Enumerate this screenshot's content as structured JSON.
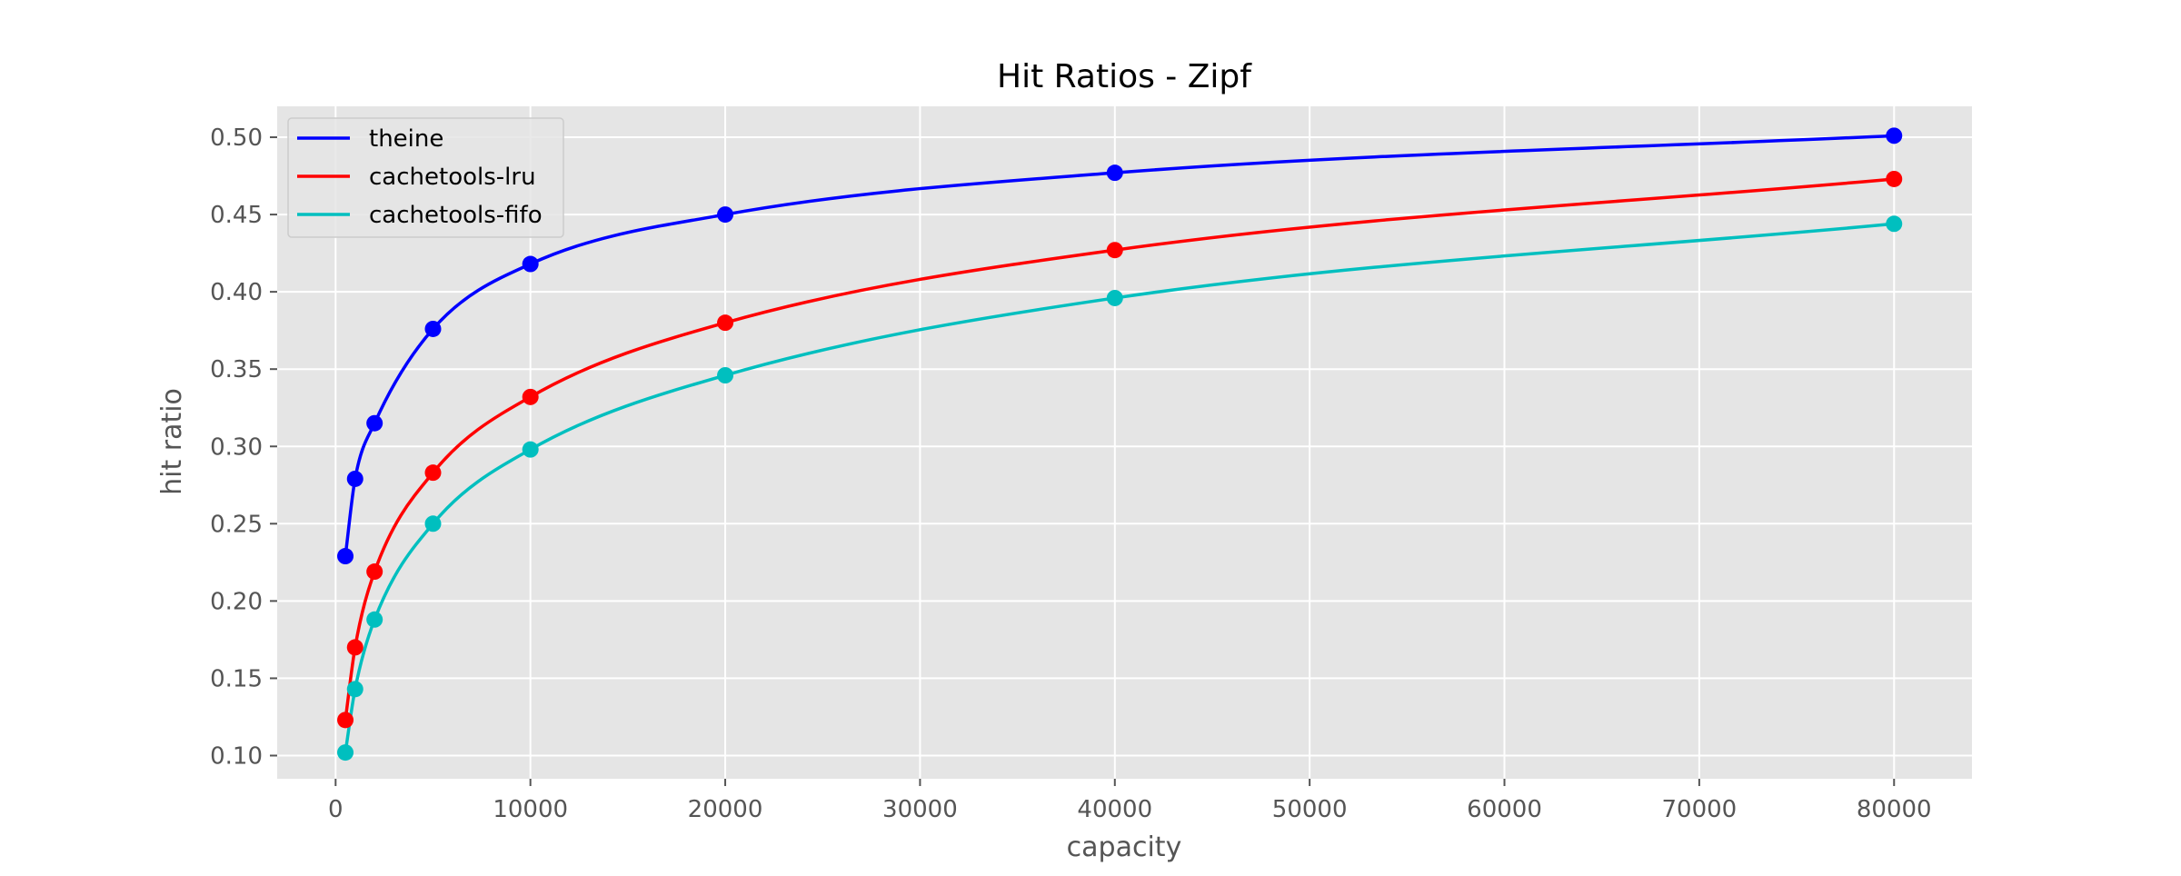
{
  "chart_data": {
    "type": "line",
    "title": "Hit Ratios - Zipf",
    "xlabel": "capacity",
    "ylabel": "hit ratio",
    "xlim": [
      -3000,
      84000
    ],
    "ylim": [
      0.085,
      0.52
    ],
    "x_ticks": [
      0,
      10000,
      20000,
      30000,
      40000,
      50000,
      60000,
      70000,
      80000
    ],
    "y_ticks": [
      0.1,
      0.15,
      0.2,
      0.25,
      0.3,
      0.35,
      0.4,
      0.45,
      0.5
    ],
    "grid": true,
    "legend_position": "upper-left",
    "x": [
      500,
      1000,
      2000,
      5000,
      10000,
      20000,
      40000,
      80000
    ],
    "series": [
      {
        "name": "theine",
        "color": "#0000ff",
        "values": [
          0.229,
          0.279,
          0.315,
          0.376,
          0.418,
          0.45,
          0.477,
          0.501
        ]
      },
      {
        "name": "cachetools-lru",
        "color": "#ff0000",
        "values": [
          0.123,
          0.17,
          0.219,
          0.283,
          0.332,
          0.38,
          0.427,
          0.473
        ]
      },
      {
        "name": "cachetools-fifo",
        "color": "#00bfbf",
        "values": [
          0.102,
          0.143,
          0.188,
          0.25,
          0.298,
          0.346,
          0.396,
          0.444
        ]
      }
    ]
  }
}
